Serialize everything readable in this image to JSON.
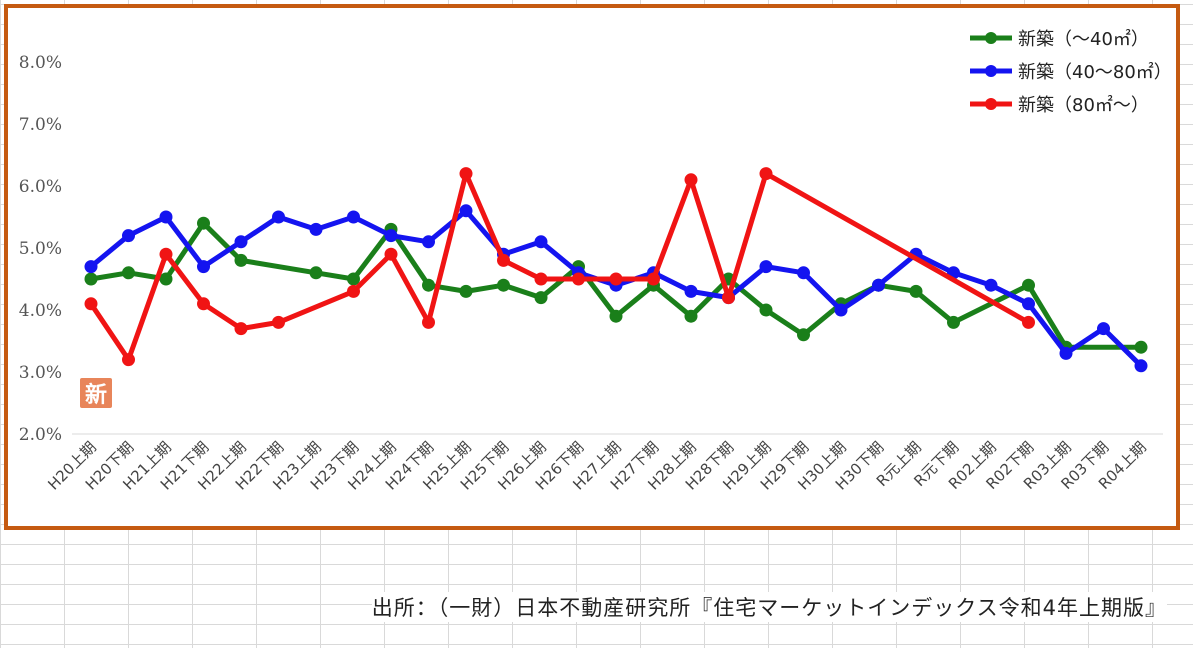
{
  "source_text": "出所：（一財）日本不動産研究所『住宅マーケットインデックス令和4年上期版』",
  "chart_data": {
    "type": "line",
    "title": "",
    "xlabel": "",
    "ylabel": "",
    "ylim": [
      2.0,
      8.0
    ],
    "yticks": [
      "2.0%",
      "3.0%",
      "4.0%",
      "5.0%",
      "6.0%",
      "7.0%",
      "8.0%"
    ],
    "grid": "horizontal baseline only",
    "legend_position": "top-right",
    "badge_text": "新",
    "categories": [
      "H20上期",
      "H20下期",
      "H21上期",
      "H21下期",
      "H22上期",
      "H22下期",
      "H23上期",
      "H23下期",
      "H24上期",
      "H24下期",
      "H25上期",
      "H25下期",
      "H26上期",
      "H26下期",
      "H27上期",
      "H27下期",
      "H28上期",
      "H28下期",
      "H29上期",
      "H29下期",
      "H30上期",
      "H30下期",
      "R元上期",
      "R元下期",
      "R02上期",
      "R02下期",
      "R03上期",
      "R03下期",
      "R04上期"
    ],
    "series": [
      {
        "name": "新築（～40㎡）",
        "color": "#1a7f1a",
        "values": [
          4.5,
          4.6,
          4.5,
          5.4,
          4.8,
          null,
          4.6,
          4.5,
          5.3,
          4.4,
          4.3,
          4.4,
          4.2,
          4.7,
          3.9,
          4.4,
          3.9,
          4.5,
          4.0,
          3.6,
          4.1,
          4.4,
          4.3,
          3.8,
          null,
          4.4,
          3.4,
          null,
          3.4
        ]
      },
      {
        "name": "新築（40～80㎡）",
        "color": "#1414f0",
        "values": [
          4.7,
          5.2,
          5.5,
          4.7,
          5.1,
          5.5,
          5.3,
          5.5,
          5.2,
          5.1,
          5.6,
          4.9,
          5.1,
          4.6,
          4.4,
          4.6,
          4.3,
          4.2,
          4.7,
          4.6,
          4.0,
          4.4,
          4.9,
          4.6,
          4.4,
          4.1,
          3.3,
          3.7,
          3.1
        ]
      },
      {
        "name": "新築（80㎡～）",
        "color": "#f01414",
        "values": [
          4.1,
          3.2,
          4.9,
          4.1,
          3.7,
          3.8,
          null,
          4.3,
          4.9,
          3.8,
          6.2,
          4.8,
          4.5,
          4.5,
          4.5,
          4.5,
          6.1,
          4.2,
          6.2,
          null,
          null,
          null,
          null,
          null,
          null,
          3.8,
          null,
          null,
          null
        ]
      }
    ]
  }
}
